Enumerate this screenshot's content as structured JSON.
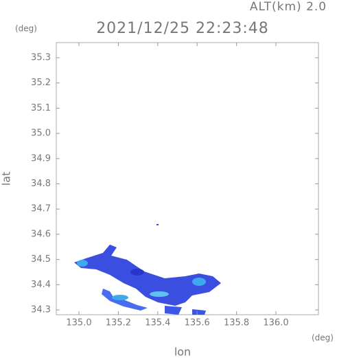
{
  "chart_data": {
    "type": "map",
    "title": "2021/12/25 22:23:48",
    "subtitle": "ALT(km) 2.0",
    "x_label": "lon",
    "y_label": "lat",
    "x_unit": "(deg)",
    "y_unit": "(deg)",
    "xlim": [
      134.885,
      136.216
    ],
    "ylim": [
      34.281,
      35.36
    ],
    "xticks": [
      {
        "value": 135.0,
        "label": "135.0"
      },
      135.2,
      135.4,
      135.6,
      135.8,
      {
        "value": 136.0,
        "label": "136.0"
      }
    ],
    "yticks": [
      34.3,
      34.4,
      34.5,
      34.6,
      34.7,
      34.8,
      34.9,
      {
        "value": 35.0,
        "label": "35.0"
      },
      35.1,
      35.2,
      35.3
    ]
  }
}
